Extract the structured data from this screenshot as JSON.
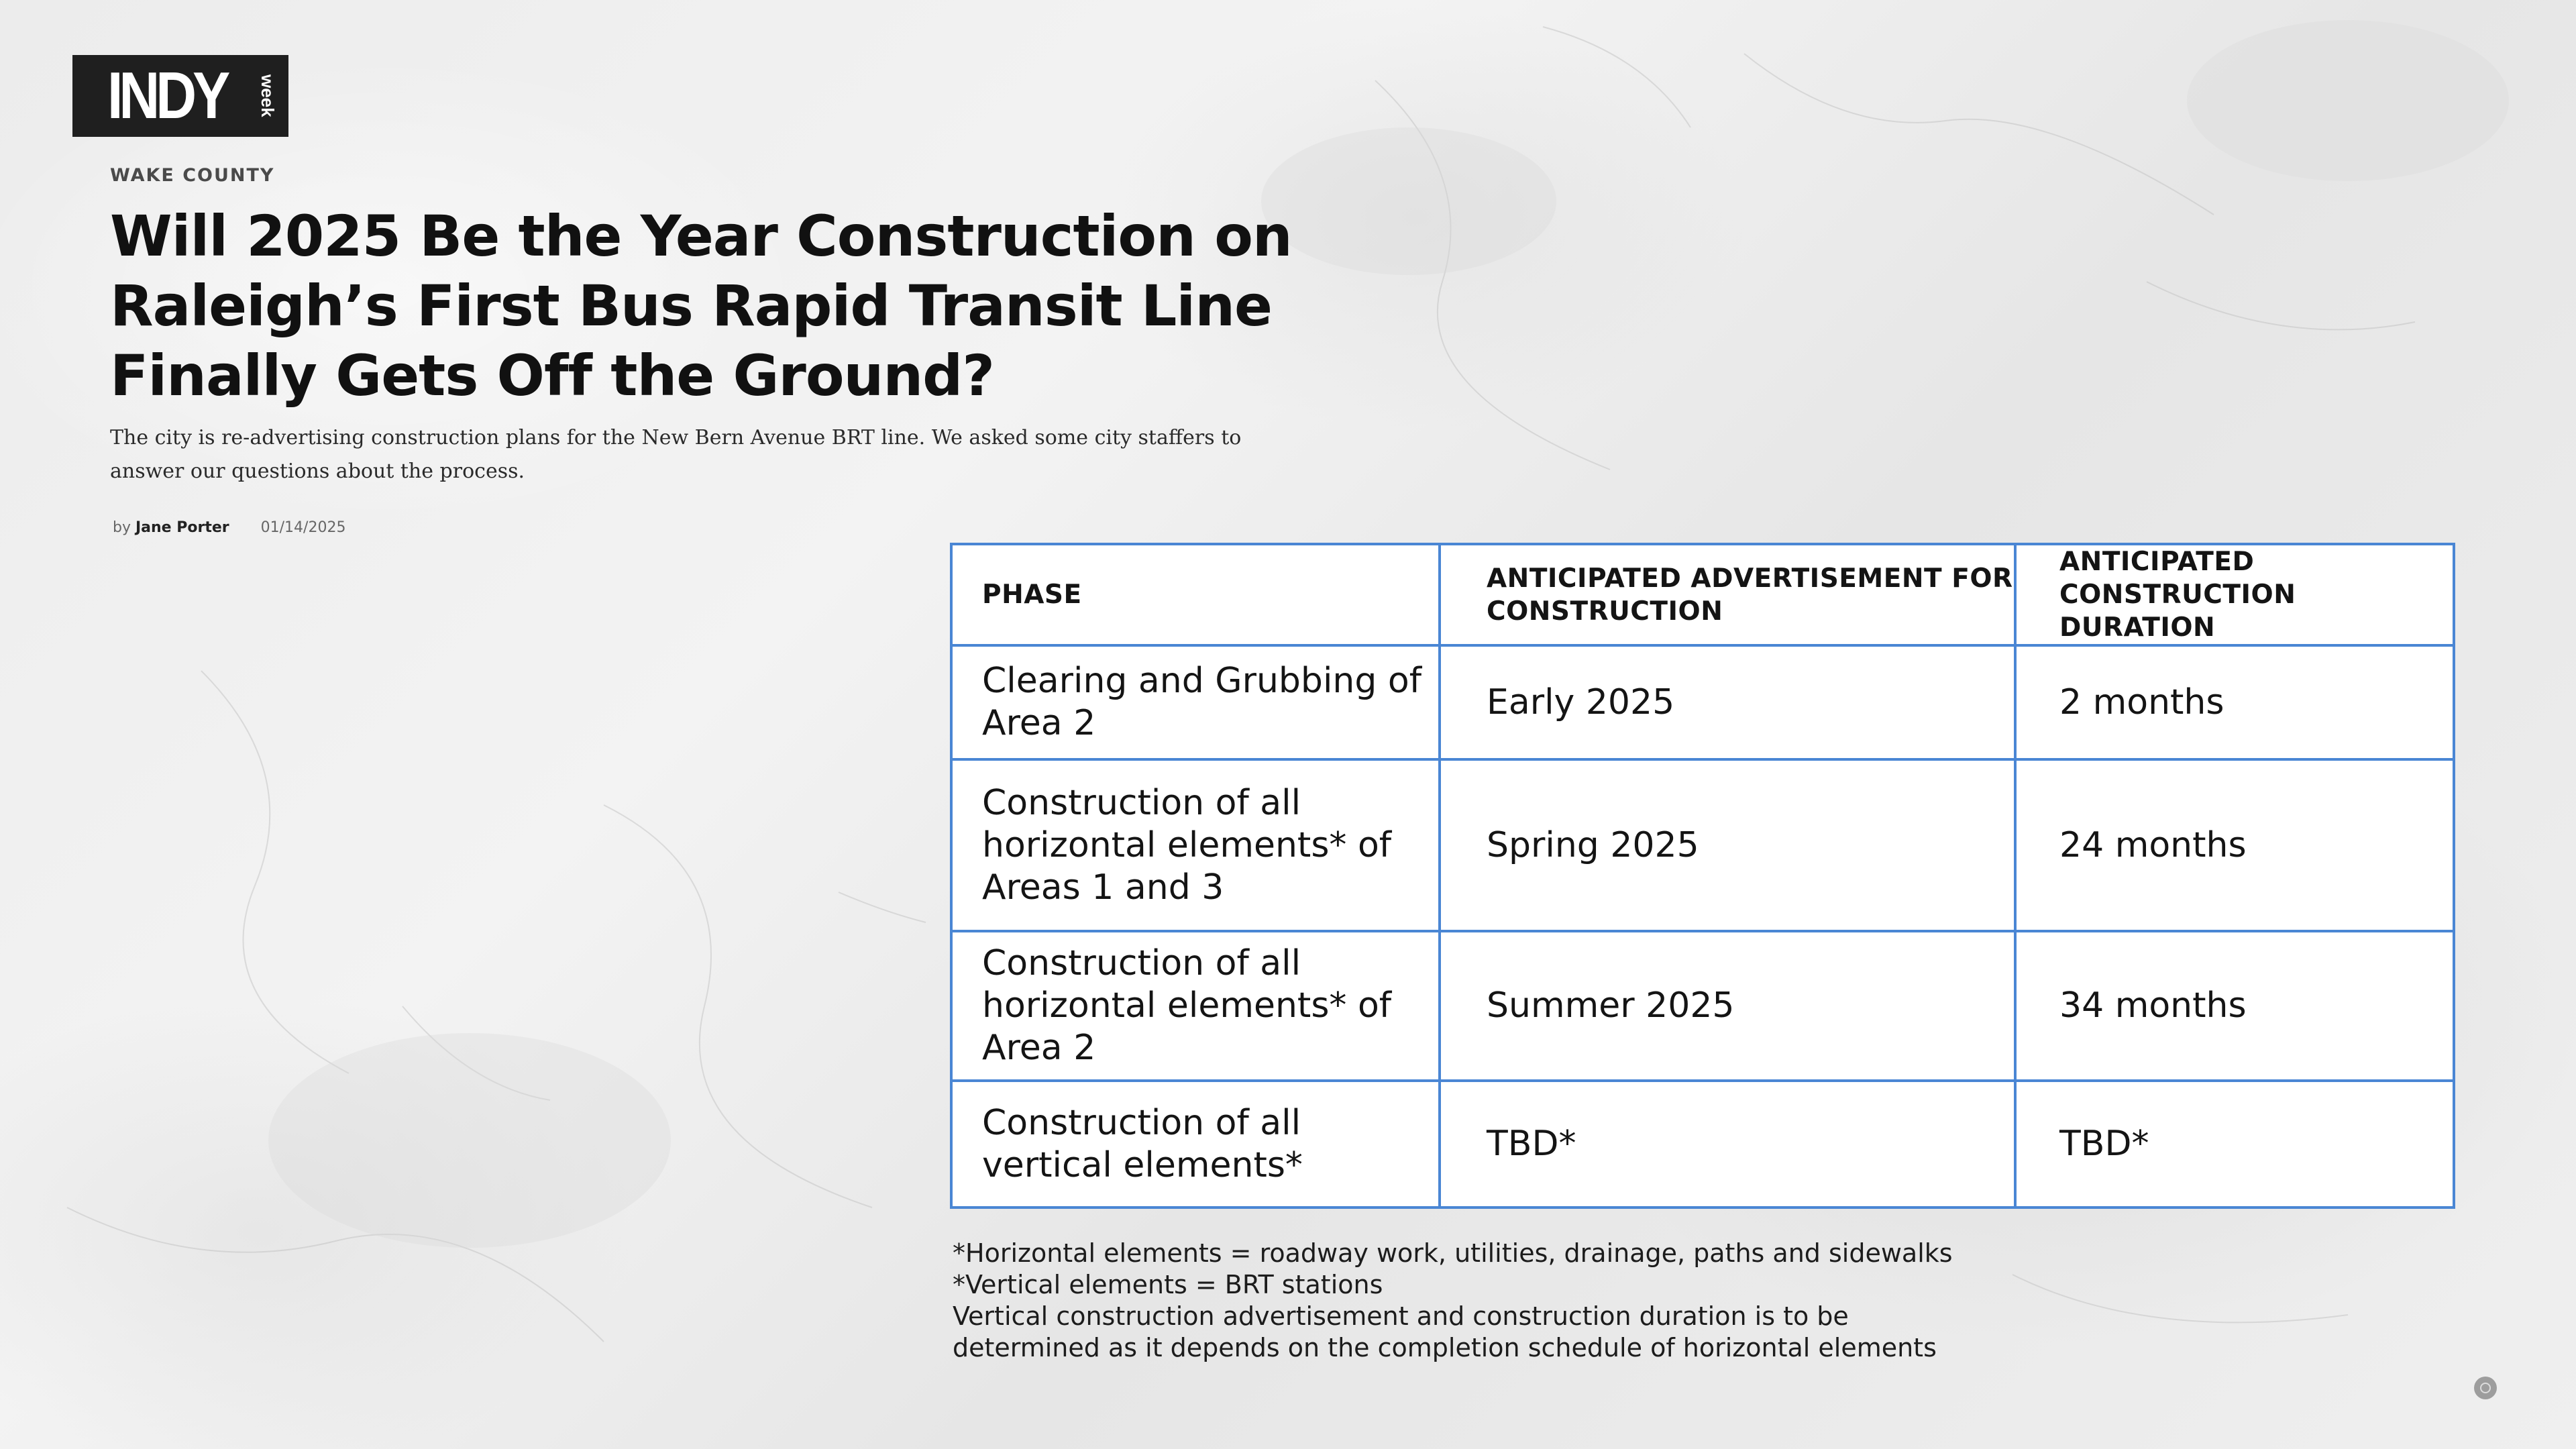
{
  "logo": {
    "main": "INDY",
    "sub": "week"
  },
  "article": {
    "section": "WAKE COUNTY",
    "title": "Will 2025 Be the Year Construction on Raleigh’s First Bus Rapid Transit Line Finally Gets Off the Ground?",
    "dek": "The city is re-advertising construction plans for the New Bern Avenue BRT line. We asked some city staffers to answer our questions about the process.",
    "byline_prefix": "by",
    "author": "Jane Porter",
    "date": "01/14/2025"
  },
  "table": {
    "headers": {
      "phase": "PHASE",
      "advertisement": "ANTICIPATED ADVERTISEMENT FOR CONSTRUCTION",
      "duration": "ANTICIPATED CONSTRUCTION DURATION"
    },
    "rows": [
      {
        "phase": "Clearing and Grubbing of Area 2",
        "advertisement": "Early 2025",
        "duration": "2 months"
      },
      {
        "phase": "Construction of all horizontal elements* of Areas 1 and 3",
        "advertisement": "Spring 2025",
        "duration": "24 months"
      },
      {
        "phase": "Construction of all horizontal elements* of Area 2",
        "advertisement": "Summer 2025",
        "duration": "34 months"
      },
      {
        "phase": "Construction of all vertical elements*",
        "advertisement": "TBD*",
        "duration": "TBD*"
      }
    ]
  },
  "footnotes": [
    "*Horizontal elements = roadway work, utilities, drainage, paths and sidewalks",
    "*Vertical elements = BRT stations",
    "Vertical construction advertisement and construction duration is to be",
    "determined as it depends on the completion schedule of horizontal elements"
  ],
  "colors": {
    "table_border": "#4a86d4",
    "logo_bg": "#1f1f1f",
    "headline": "#111111"
  }
}
